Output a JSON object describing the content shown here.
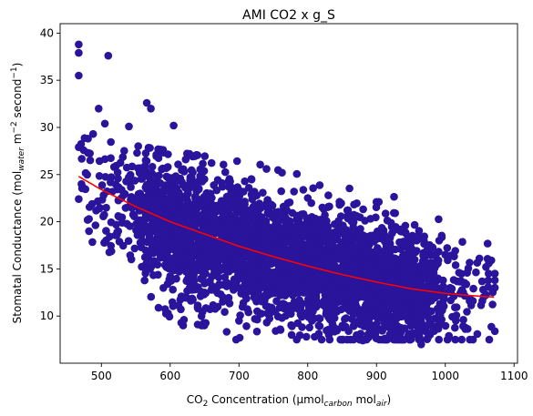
{
  "chart_data": {
    "type": "scatter",
    "title": "AMI CO2 x g_S",
    "xlabel": {
      "main": "CO",
      "main_sub": "2",
      "after_main": " Concentration (µmol",
      "sub1": "carbon",
      "mid": " mol",
      "sub2": "air",
      "end": ")"
    },
    "ylabel": {
      "main": "Stomatal Conductance (mol",
      "sub1": "water",
      "mid": " m",
      "sup1": "−2",
      "mid2": " second",
      "sup2": "−1",
      "end": ")"
    },
    "xlim": [
      440,
      1105
    ],
    "ylim": [
      5,
      41
    ],
    "xticks": [
      500,
      600,
      700,
      800,
      900,
      1000,
      1100
    ],
    "yticks": [
      10,
      15,
      20,
      25,
      30,
      35,
      40
    ],
    "grid": false,
    "legend": "none",
    "colors": {
      "points": "#2a149b",
      "fit_line": "#ff0000",
      "axes": "#000000"
    },
    "point_cloud": {
      "count": 3600,
      "x_range": [
        470,
        1070
      ],
      "trend_note": "dense cloud following the fitted curve with spread of roughly ±5 units"
    },
    "outlier_points": [
      {
        "x": 467,
        "y": 38.8
      },
      {
        "x": 467,
        "y": 37.9
      },
      {
        "x": 467,
        "y": 35.5
      },
      {
        "x": 510,
        "y": 37.6
      },
      {
        "x": 467,
        "y": 27.9
      },
      {
        "x": 467,
        "y": 22.4
      },
      {
        "x": 496,
        "y": 32.0
      },
      {
        "x": 482,
        "y": 19.0
      },
      {
        "x": 482,
        "y": 20.3
      },
      {
        "x": 566,
        "y": 32.6
      },
      {
        "x": 572,
        "y": 32.0
      },
      {
        "x": 605,
        "y": 30.2
      },
      {
        "x": 488,
        "y": 29.3
      },
      {
        "x": 505,
        "y": 30.4
      },
      {
        "x": 540,
        "y": 30.1
      },
      {
        "x": 1072,
        "y": 14.5
      },
      {
        "x": 1072,
        "y": 13.8
      },
      {
        "x": 1072,
        "y": 13.0
      },
      {
        "x": 1072,
        "y": 8.4
      },
      {
        "x": 1063,
        "y": 14.5
      },
      {
        "x": 1055,
        "y": 12.8
      },
      {
        "x": 965,
        "y": 7.0
      },
      {
        "x": 940,
        "y": 7.5
      },
      {
        "x": 880,
        "y": 7.4
      },
      {
        "x": 620,
        "y": 9.6
      },
      {
        "x": 640,
        "y": 9.1
      },
      {
        "x": 700,
        "y": 9.5
      },
      {
        "x": 760,
        "y": 8.6
      },
      {
        "x": 810,
        "y": 7.8
      },
      {
        "x": 740,
        "y": 25.6
      },
      {
        "x": 780,
        "y": 23.2
      },
      {
        "x": 830,
        "y": 22.8
      },
      {
        "x": 900,
        "y": 22.1
      },
      {
        "x": 870,
        "y": 20.5
      },
      {
        "x": 1020,
        "y": 14.6
      },
      {
        "x": 1000,
        "y": 16.5
      }
    ],
    "fit_curve": {
      "x": [
        467,
        500,
        550,
        600,
        650,
        700,
        750,
        800,
        850,
        900,
        950,
        1000,
        1050,
        1072
      ],
      "y": [
        24.8,
        23.4,
        21.6,
        20.0,
        18.7,
        17.4,
        16.3,
        15.3,
        14.4,
        13.6,
        12.9,
        12.4,
        12.1,
        12.0
      ]
    }
  }
}
